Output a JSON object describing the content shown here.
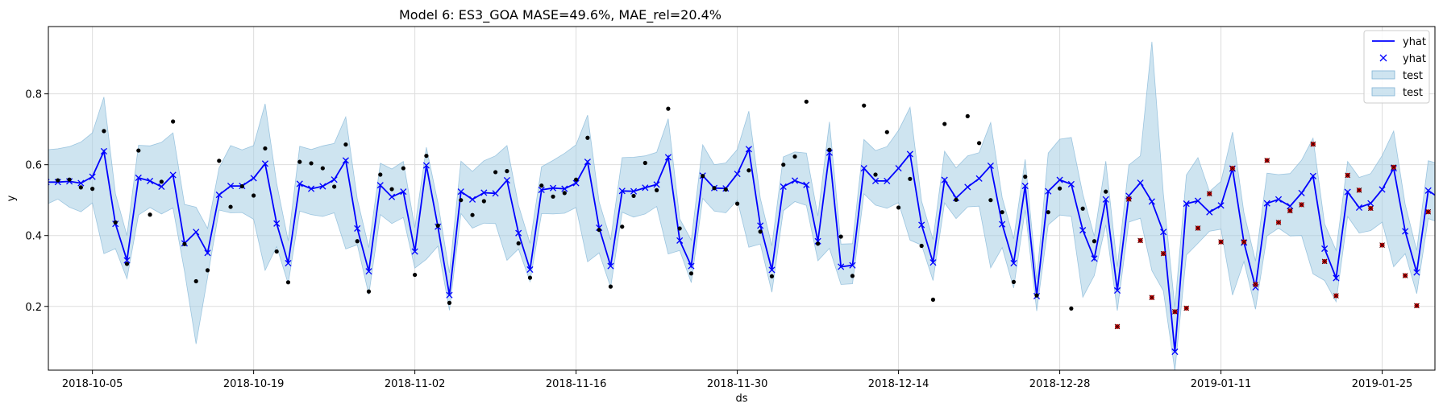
{
  "chart_data": {
    "type": "line",
    "title": "Model 6: ES3_GOA MASE=49.6%, MAE_rel=20.4%",
    "xlabel": "ds",
    "ylabel": "y",
    "x_start": "2018-10-01",
    "x_tick_labels": [
      "2018-10-05",
      "2018-10-19",
      "2018-11-02",
      "2018-11-16",
      "2018-11-30",
      "2018-12-14",
      "2018-12-28",
      "2019-01-11",
      "2019-01-25"
    ],
    "y_ticks": [
      0.2,
      0.4,
      0.6,
      0.8
    ],
    "y_tick_labels": [
      "0.2",
      "0.4",
      "0.6",
      "0.8"
    ],
    "ylim": [
      0.02,
      0.99
    ],
    "grid": true,
    "legend_position": "top-right",
    "legend": [
      {
        "label": "yhat",
        "kind": "line",
        "color": "#0000ff"
      },
      {
        "label": "yhat",
        "kind": "marker-x",
        "color": "#0000ff"
      },
      {
        "label": "test",
        "kind": "band",
        "color": "#a6cee3"
      },
      {
        "label": "test",
        "kind": "band",
        "color": "#a6cee3"
      }
    ],
    "colors": {
      "forecast": "#0000ff",
      "band_fill": "#a6cee3",
      "band_edge": "#7fb3d5",
      "observed": "#000000",
      "test_points": "#cc0000"
    },
    "series": [
      {
        "name": "yhat",
        "values": [
          0.551,
          0.551,
          0.553,
          0.548,
          0.566,
          0.638,
          0.433,
          0.33,
          0.563,
          0.554,
          0.538,
          0.571,
          0.378,
          0.41,
          0.351,
          0.515,
          0.54,
          0.54,
          0.562,
          0.603,
          0.434,
          0.322,
          0.546,
          0.532,
          0.539,
          0.558,
          0.612,
          0.42,
          0.299,
          0.542,
          0.509,
          0.524,
          0.355,
          0.598,
          0.425,
          0.232,
          0.524,
          0.502,
          0.521,
          0.519,
          0.556,
          0.407,
          0.304,
          0.529,
          0.534,
          0.532,
          0.548,
          0.608,
          0.422,
          0.314,
          0.526,
          0.525,
          0.535,
          0.544,
          0.621,
          0.386,
          0.314,
          0.569,
          0.534,
          0.533,
          0.574,
          0.644,
          0.428,
          0.303,
          0.538,
          0.555,
          0.543,
          0.384,
          0.634,
          0.312,
          0.316,
          0.59,
          0.554,
          0.554,
          0.59,
          0.63,
          0.43,
          0.324,
          0.557,
          0.506,
          0.537,
          0.561,
          0.597,
          0.432,
          0.322,
          0.54,
          0.229,
          0.525,
          0.557,
          0.545,
          0.415,
          0.335,
          0.502,
          0.245,
          0.512,
          0.549,
          0.496,
          0.41,
          0.072,
          0.49,
          0.498,
          0.466,
          0.485,
          0.589,
          0.38,
          0.254,
          0.491,
          0.502,
          0.483,
          0.52,
          0.568,
          0.363,
          0.28,
          0.523,
          0.479,
          0.491,
          0.53,
          0.59,
          0.412,
          0.296,
          0.527,
          0.505,
          0.496,
          0.512
        ]
      },
      {
        "name": "test",
        "lower": [
          0.488,
          0.503,
          0.48,
          0.467,
          0.492,
          0.349,
          0.363,
          0.278,
          0.458,
          0.479,
          0.461,
          0.478,
          0.299,
          0.094,
          0.282,
          0.472,
          0.464,
          0.465,
          0.446,
          0.302,
          0.369,
          0.264,
          0.469,
          0.459,
          0.454,
          0.464,
          0.362,
          0.374,
          0.233,
          0.459,
          0.434,
          0.451,
          0.308,
          0.333,
          0.37,
          0.189,
          0.462,
          0.421,
          0.435,
          0.434,
          0.33,
          0.362,
          0.27,
          0.462,
          0.461,
          0.463,
          0.479,
          0.326,
          0.351,
          0.254,
          0.466,
          0.452,
          0.461,
          0.482,
          0.348,
          0.358,
          0.267,
          0.505,
          0.469,
          0.464,
          0.5,
          0.367,
          0.376,
          0.24,
          0.47,
          0.496,
          0.485,
          0.329,
          0.364,
          0.262,
          0.264,
          0.518,
          0.486,
          0.477,
          0.493,
          0.387,
          0.373,
          0.273,
          0.492,
          0.448,
          0.481,
          0.483,
          0.309,
          0.366,
          0.252,
          0.472,
          0.187,
          0.43,
          0.458,
          0.454,
          0.226,
          0.287,
          0.43,
          0.188,
          0.438,
          0.449,
          0.301,
          0.244,
          0.018,
          0.345,
          0.378,
          0.412,
          0.418,
          0.232,
          0.327,
          0.192,
          0.399,
          0.421,
          0.399,
          0.4,
          0.292,
          0.273,
          0.213,
          0.454,
          0.407,
          0.414,
          0.438,
          0.312,
          0.349,
          0.236,
          0.448,
          0.436,
          0.422,
          0.437
        ],
        "upper": [
          0.642,
          0.645,
          0.651,
          0.664,
          0.69,
          0.791,
          0.518,
          0.4,
          0.655,
          0.653,
          0.663,
          0.69,
          0.488,
          0.48,
          0.42,
          0.591,
          0.654,
          0.642,
          0.654,
          0.772,
          0.547,
          0.385,
          0.652,
          0.643,
          0.653,
          0.66,
          0.735,
          0.503,
          0.366,
          0.604,
          0.588,
          0.609,
          0.422,
          0.649,
          0.493,
          0.295,
          0.61,
          0.581,
          0.611,
          0.625,
          0.654,
          0.485,
          0.378,
          0.594,
          0.612,
          0.632,
          0.656,
          0.74,
          0.495,
          0.388,
          0.62,
          0.621,
          0.625,
          0.635,
          0.73,
          0.447,
          0.387,
          0.656,
          0.6,
          0.605,
          0.643,
          0.751,
          0.505,
          0.371,
          0.622,
          0.636,
          0.633,
          0.455,
          0.721,
          0.376,
          0.377,
          0.671,
          0.64,
          0.651,
          0.697,
          0.762,
          0.497,
          0.389,
          0.638,
          0.591,
          0.625,
          0.634,
          0.719,
          0.507,
          0.391,
          0.615,
          0.276,
          0.633,
          0.672,
          0.677,
          0.517,
          0.398,
          0.61,
          0.312,
          0.599,
          0.625,
          0.947,
          0.518,
          0.197,
          0.571,
          0.62,
          0.524,
          0.553,
          0.692,
          0.464,
          0.328,
          0.576,
          0.572,
          0.575,
          0.613,
          0.675,
          0.433,
          0.358,
          0.609,
          0.564,
          0.575,
          0.626,
          0.695,
          0.488,
          0.358,
          0.611,
          0.602,
          0.57,
          0.587
        ]
      },
      {
        "name": "observed",
        "points": [
          [
            0,
            0.452
          ],
          [
            1,
            0.556
          ],
          [
            2,
            0.558
          ],
          [
            3,
            0.536
          ],
          [
            4,
            0.532
          ],
          [
            5,
            0.695
          ],
          [
            6,
            0.437
          ],
          [
            7,
            0.32
          ],
          [
            8,
            0.64
          ],
          [
            9,
            0.459
          ],
          [
            10,
            0.552
          ],
          [
            11,
            0.722
          ],
          [
            12,
            0.376
          ],
          [
            13,
            0.271
          ],
          [
            14,
            0.302
          ],
          [
            15,
            0.611
          ],
          [
            16,
            0.481
          ],
          [
            17,
            0.539
          ],
          [
            18,
            0.513
          ],
          [
            19,
            0.646
          ],
          [
            20,
            0.355
          ],
          [
            21,
            0.268
          ],
          [
            22,
            0.608
          ],
          [
            23,
            0.604
          ],
          [
            24,
            0.59
          ],
          [
            25,
            0.538
          ],
          [
            26,
            0.657
          ],
          [
            27,
            0.384
          ],
          [
            28,
            0.242
          ],
          [
            29,
            0.572
          ],
          [
            30,
            0.531
          ],
          [
            31,
            0.59
          ],
          [
            32,
            0.289
          ],
          [
            33,
            0.625
          ],
          [
            34,
            0.428
          ],
          [
            35,
            0.21
          ],
          [
            36,
            0.5
          ],
          [
            37,
            0.458
          ],
          [
            38,
            0.497
          ],
          [
            39,
            0.579
          ],
          [
            40,
            0.582
          ],
          [
            41,
            0.378
          ],
          [
            42,
            0.281
          ],
          [
            43,
            0.541
          ],
          [
            44,
            0.51
          ],
          [
            45,
            0.52
          ],
          [
            46,
            0.558
          ],
          [
            47,
            0.676
          ],
          [
            48,
            0.416
          ],
          [
            49,
            0.256
          ],
          [
            50,
            0.425
          ],
          [
            51,
            0.512
          ],
          [
            52,
            0.605
          ],
          [
            53,
            0.528
          ],
          [
            54,
            0.758
          ],
          [
            55,
            0.42
          ],
          [
            56,
            0.293
          ],
          [
            57,
            0.568
          ],
          [
            58,
            0.534
          ],
          [
            59,
            0.53
          ],
          [
            60,
            0.49
          ],
          [
            61,
            0.584
          ],
          [
            62,
            0.411
          ],
          [
            63,
            0.285
          ],
          [
            64,
            0.6
          ],
          [
            65,
            0.623
          ],
          [
            66,
            0.778
          ],
          [
            67,
            0.377
          ],
          [
            68,
            0.642
          ],
          [
            69,
            0.397
          ],
          [
            70,
            0.286
          ],
          [
            71,
            0.767
          ],
          [
            72,
            0.572
          ],
          [
            73,
            0.692
          ],
          [
            74,
            0.479
          ],
          [
            75,
            0.56
          ],
          [
            76,
            0.371
          ],
          [
            77,
            0.219
          ],
          [
            78,
            0.715
          ],
          [
            79,
            0.501
          ],
          [
            80,
            0.737
          ],
          [
            81,
            0.661
          ],
          [
            82,
            0.5
          ],
          [
            83,
            0.466
          ],
          [
            84,
            0.269
          ],
          [
            85,
            0.566
          ],
          [
            86,
            0.231
          ],
          [
            87,
            0.466
          ],
          [
            88,
            0.533
          ],
          [
            89,
            0.194
          ],
          [
            90,
            0.476
          ],
          [
            91,
            0.384
          ],
          [
            92,
            0.524
          ]
        ]
      },
      {
        "name": "test points",
        "points": [
          [
            93,
            0.143
          ],
          [
            94,
            0.503
          ],
          [
            95,
            0.386
          ],
          [
            96,
            0.225
          ],
          [
            97,
            0.349
          ],
          [
            98,
            0.185
          ],
          [
            99,
            0.195
          ],
          [
            100,
            0.421
          ],
          [
            101,
            0.518
          ],
          [
            102,
            0.382
          ],
          [
            103,
            0.59
          ],
          [
            104,
            0.382
          ],
          [
            105,
            0.262
          ],
          [
            106,
            0.612
          ],
          [
            107,
            0.437
          ],
          [
            108,
            0.47
          ],
          [
            109,
            0.487
          ],
          [
            110,
            0.658
          ],
          [
            111,
            0.327
          ],
          [
            112,
            0.23
          ],
          [
            113,
            0.57
          ],
          [
            114,
            0.528
          ],
          [
            115,
            0.477
          ],
          [
            116,
            0.373
          ],
          [
            117,
            0.593
          ],
          [
            118,
            0.287
          ],
          [
            119,
            0.202
          ],
          [
            120,
            0.467
          ],
          [
            121,
            0.421
          ],
          [
            122,
            0.285
          ],
          [
            123,
            0.47
          ]
        ]
      }
    ]
  }
}
